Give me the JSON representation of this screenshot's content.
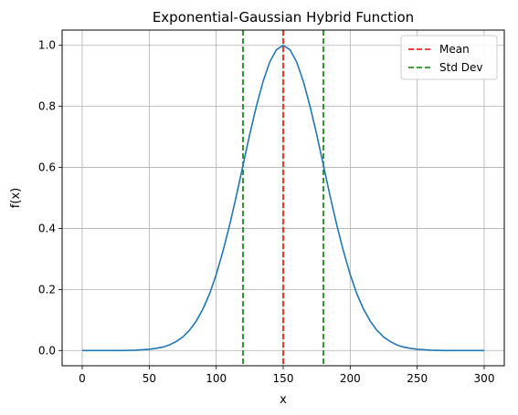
{
  "chart_data": {
    "type": "line",
    "title": "Exponential-Gaussian Hybrid Function",
    "xlabel": "x",
    "ylabel": "f(x)",
    "xlim": [
      -15,
      315
    ],
    "ylim": [
      -0.05,
      1.05
    ],
    "x_ticks": [
      0,
      50,
      100,
      150,
      200,
      250,
      300
    ],
    "y_ticks": [
      0.0,
      0.2,
      0.4,
      0.6,
      0.8,
      1.0
    ],
    "x_tick_labels": [
      "0",
      "50",
      "100",
      "150",
      "200",
      "250",
      "300"
    ],
    "y_tick_labels": [
      "0.0",
      "0.2",
      "0.4",
      "0.6",
      "0.8",
      "1.0"
    ],
    "grid": true,
    "legend_position": "top-right",
    "series": [
      {
        "color": "#1f77b4",
        "x": [
          0,
          10,
          20,
          30,
          40,
          50,
          55,
          60,
          65,
          70,
          75,
          80,
          85,
          90,
          95,
          100,
          105,
          110,
          115,
          120,
          125,
          130,
          135,
          140,
          145,
          150,
          155,
          160,
          165,
          170,
          175,
          180,
          185,
          190,
          195,
          200,
          205,
          210,
          215,
          220,
          225,
          230,
          235,
          240,
          245,
          250,
          260,
          270,
          280,
          290,
          300
        ],
        "y": [
          0.0,
          0.0,
          0.0,
          0.0,
          0.001,
          0.004,
          0.007,
          0.011,
          0.018,
          0.029,
          0.044,
          0.066,
          0.096,
          0.135,
          0.185,
          0.249,
          0.325,
          0.411,
          0.506,
          0.607,
          0.708,
          0.801,
          0.882,
          0.946,
          0.986,
          1.0,
          0.986,
          0.946,
          0.882,
          0.801,
          0.708,
          0.607,
          0.506,
          0.411,
          0.325,
          0.249,
          0.185,
          0.135,
          0.096,
          0.066,
          0.044,
          0.029,
          0.018,
          0.011,
          0.007,
          0.004,
          0.001,
          0.0,
          0.0,
          0.0,
          0.0
        ]
      }
    ],
    "reference_lines": [
      {
        "name": "Mean",
        "x": 150,
        "color": "#ff0000"
      },
      {
        "name": "Std Dev",
        "x": 120,
        "color": "#008000"
      },
      {
        "name": "Std Dev",
        "x": 180,
        "color": "#008000"
      }
    ],
    "legend": [
      {
        "label": "Mean",
        "color": "#ff0000"
      },
      {
        "label": "Std Dev",
        "color": "#008000"
      }
    ]
  }
}
